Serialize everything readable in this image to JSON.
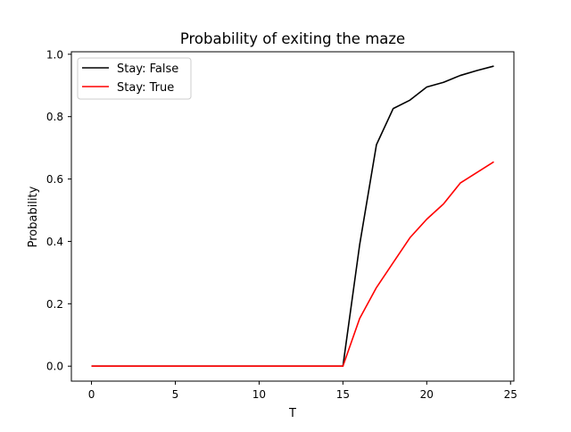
{
  "chart_data": {
    "type": "line",
    "title": "Probability of exiting the maze",
    "xlabel": "T",
    "ylabel": "Probability",
    "xlim": [
      -1.2,
      25.2
    ],
    "ylim": [
      -0.048,
      1.008
    ],
    "xticks": [
      0,
      5,
      10,
      15,
      20,
      25
    ],
    "yticks": [
      0.0,
      0.2,
      0.4,
      0.6,
      0.8,
      1.0
    ],
    "ytick_labels": [
      "0.0",
      "0.2",
      "0.4",
      "0.6",
      "0.8",
      "1.0"
    ],
    "grid": false,
    "legend_position": "top-left",
    "x": [
      0,
      1,
      2,
      3,
      4,
      5,
      6,
      7,
      8,
      9,
      10,
      11,
      12,
      13,
      14,
      15,
      16,
      17,
      18,
      19,
      20,
      21,
      22,
      23,
      24
    ],
    "series": [
      {
        "name": "Stay: False",
        "color": "#000000",
        "values": [
          0,
          0,
          0,
          0,
          0,
          0,
          0,
          0,
          0,
          0,
          0,
          0,
          0,
          0,
          0,
          0,
          0.39,
          0.71,
          0.826,
          0.853,
          0.895,
          0.91,
          0.932,
          0.948,
          0.962
        ]
      },
      {
        "name": "Stay: True",
        "color": "#ff0000",
        "values": [
          0,
          0,
          0,
          0,
          0,
          0,
          0,
          0,
          0,
          0,
          0,
          0,
          0,
          0,
          0,
          0,
          0.153,
          0.252,
          0.332,
          0.412,
          0.471,
          0.52,
          0.587,
          0.621,
          0.655
        ]
      }
    ]
  }
}
